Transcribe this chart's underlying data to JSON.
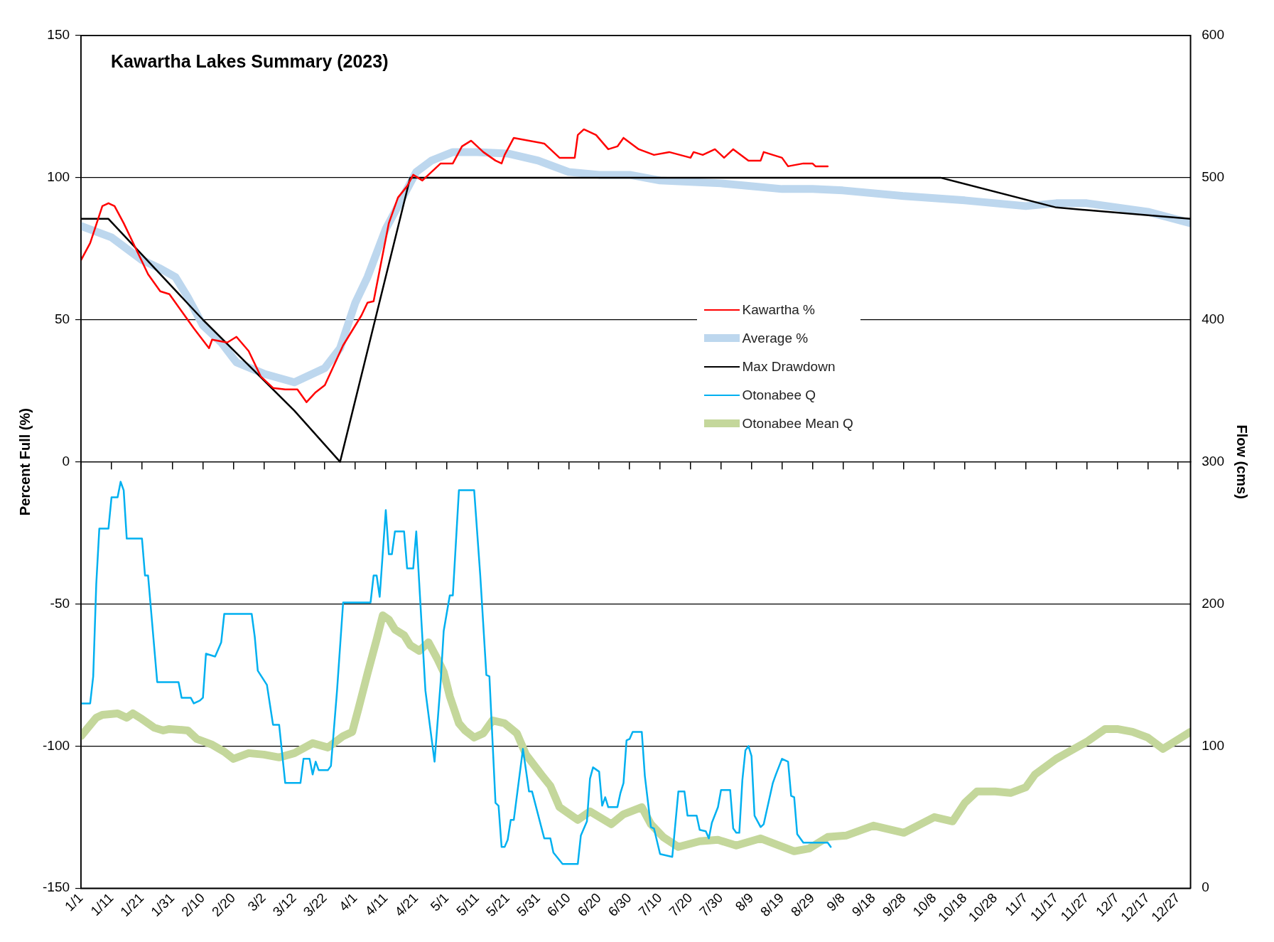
{
  "chart_data": {
    "type": "line",
    "title": "Kawartha Lakes Summary (2023)",
    "ylabel": "Percent Full (%)",
    "y2label": "Flow (cms)",
    "xlim": [
      "--01-01",
      "--12-31"
    ],
    "xticks": [
      {
        "value": "--01-01",
        "label": "1/1"
      },
      {
        "value": "--01-11",
        "label": "1/11"
      },
      {
        "value": "--01-21",
        "label": "1/21"
      },
      {
        "value": "--01-31",
        "label": "1/31"
      },
      {
        "value": "--02-10",
        "label": "2/10"
      },
      {
        "value": "--02-20",
        "label": "2/20"
      },
      {
        "value": "--03-02",
        "label": "3/2"
      },
      {
        "value": "--03-12",
        "label": "3/12"
      },
      {
        "value": "--03-22",
        "label": "3/22"
      },
      {
        "value": "--04-01",
        "label": "4/1"
      },
      {
        "value": "--04-11",
        "label": "4/11"
      },
      {
        "value": "--04-21",
        "label": "4/21"
      },
      {
        "value": "--05-01",
        "label": "5/1"
      },
      {
        "value": "--05-11",
        "label": "5/11"
      },
      {
        "value": "--05-21",
        "label": "5/21"
      },
      {
        "value": "--05-31",
        "label": "5/31"
      },
      {
        "value": "--06-10",
        "label": "6/10"
      },
      {
        "value": "--06-20",
        "label": "6/20"
      },
      {
        "value": "--06-30",
        "label": "6/30"
      },
      {
        "value": "--07-10",
        "label": "7/10"
      },
      {
        "value": "--07-20",
        "label": "7/20"
      },
      {
        "value": "--07-30",
        "label": "7/30"
      },
      {
        "value": "--08-09",
        "label": "8/9"
      },
      {
        "value": "--08-19",
        "label": "8/19"
      },
      {
        "value": "--08-29",
        "label": "8/29"
      },
      {
        "value": "--09-08",
        "label": "9/8"
      },
      {
        "value": "--09-18",
        "label": "9/18"
      },
      {
        "value": "--09-28",
        "label": "9/28"
      },
      {
        "value": "--10-08",
        "label": "10/8"
      },
      {
        "value": "--10-18",
        "label": "10/18"
      },
      {
        "value": "--10-28",
        "label": "10/28"
      },
      {
        "value": "--11-07",
        "label": "11/7"
      },
      {
        "value": "--11-17",
        "label": "11/17"
      },
      {
        "value": "--11-27",
        "label": "11/27"
      },
      {
        "value": "--12-07",
        "label": "12/7"
      },
      {
        "value": "--12-17",
        "label": "12/17"
      },
      {
        "value": "--12-27",
        "label": "12/27"
      }
    ],
    "ylim": [
      -150,
      150
    ],
    "yticks": [
      -150,
      -100,
      -50,
      0,
      50,
      100,
      150
    ],
    "y2lim": [
      0,
      600
    ],
    "y2ticks": [
      0,
      100,
      200,
      300,
      400,
      500,
      600
    ],
    "grid": "y",
    "legend": "center",
    "series": [
      {
        "name": "Kawartha %",
        "color": "#ff0000",
        "x": [
          "--01-01",
          "--01-04",
          "--01-08",
          "--01-10",
          "--01-12",
          "--01-15",
          "--01-19",
          "--01-23",
          "--01-27",
          "--01-30",
          "--02-03",
          "--02-07",
          "--02-12",
          "--02-13",
          "--02-18",
          "--02-21",
          "--02-25",
          "--03-01",
          "--03-05",
          "--03-09",
          "--03-13",
          "--03-16",
          "--03-19",
          "--03-22",
          "--03-25",
          "--03-28",
          "--04-01",
          "--04-03",
          "--04-05",
          "--04-07",
          "--04-09",
          "--04-12",
          "--04-15",
          "--04-18",
          "--04-20",
          "--04-23",
          "--04-25",
          "--04-29",
          "--05-03",
          "--05-06",
          "--05-09",
          "--05-13",
          "--05-17",
          "--05-19",
          "--05-20",
          "--05-23",
          "--06-02",
          "--06-07",
          "--06-12",
          "--06-13",
          "--06-15",
          "--06-19",
          "--06-23",
          "--06-26",
          "--06-28",
          "--07-03",
          "--07-08",
          "--07-13",
          "--07-20",
          "--07-21",
          "--07-24",
          "--07-28",
          "--07-31",
          "--08-03",
          "--08-08",
          "--08-12",
          "--08-13",
          "--08-19",
          "--08-21",
          "--08-26",
          "--08-29",
          "--08-30",
          "--09-03"
        ],
        "values": [
          71,
          77,
          90,
          91,
          90,
          84,
          75,
          66,
          60,
          59,
          53,
          47,
          40,
          43,
          42,
          44,
          39,
          30,
          26,
          25.5,
          25.5,
          21,
          24.5,
          27,
          34,
          41,
          48,
          51.5,
          56,
          56.5,
          67.5,
          84,
          93,
          97,
          101,
          99,
          101,
          105,
          105,
          111,
          113,
          109,
          106,
          105,
          108,
          114,
          112,
          107,
          107,
          115,
          117,
          115,
          110,
          111,
          114,
          110,
          108,
          109,
          107,
          109,
          108,
          110,
          107,
          110,
          106,
          106,
          109,
          107,
          104,
          105,
          105,
          104,
          104
        ]
      },
      {
        "name": "Average %",
        "color": "#bdd7ee",
        "x": [
          "--01-01",
          "--01-11",
          "--01-21",
          "--01-27",
          "--02-01",
          "--02-05",
          "--02-10",
          "--02-16",
          "--02-21",
          "--03-02",
          "--03-12",
          "--03-22",
          "--03-27",
          "--04-01",
          "--04-05",
          "--04-11",
          "--04-16",
          "--04-21",
          "--04-26",
          "--05-03",
          "--05-11",
          "--05-21",
          "--05-31",
          "--06-10",
          "--06-20",
          "--06-30",
          "--07-10",
          "--07-30",
          "--08-19",
          "--08-29",
          "--09-08",
          "--09-28",
          "--10-18",
          "--11-07",
          "--11-17",
          "--11-27",
          "--12-07",
          "--12-17",
          "--12-31"
        ],
        "values": [
          83,
          79,
          71,
          68,
          65,
          58,
          48,
          42,
          35,
          31,
          28,
          33,
          40,
          56,
          65,
          82,
          92,
          102,
          106,
          109,
          109,
          108.5,
          106,
          102,
          101,
          101,
          99,
          98,
          96,
          96,
          95.5,
          93.5,
          92,
          90,
          91,
          91,
          89.5,
          88,
          84
        ]
      },
      {
        "name": "Max Drawdown",
        "color": "#000000",
        "x": [
          "--01-01",
          "--01-10",
          "--02-10",
          "--03-12",
          "--03-27",
          "--03-30",
          "--04-19",
          "--10-10",
          "--11-17",
          "--12-31"
        ],
        "values": [
          85.5,
          85.5,
          50,
          18,
          0,
          13,
          100,
          100,
          89.5,
          85.5
        ]
      },
      {
        "name": "Otonabee Q",
        "color": "#00b0f0",
        "axis": "y2",
        "x": [
          "--01-01",
          "--01-04",
          "--01-05",
          "--01-06",
          "--01-07",
          "--01-10",
          "--01-11",
          "--01-13",
          "--01-14",
          "--01-15",
          "--01-16",
          "--01-21",
          "--01-22",
          "--01-23",
          "--01-26",
          "--02-02",
          "--02-03",
          "--02-06",
          "--02-07",
          "--02-09",
          "--02-10",
          "--02-11",
          "--02-14",
          "--02-16",
          "--02-17",
          "--02-26",
          "--02-27",
          "--02-28",
          "--03-03",
          "--03-05",
          "--03-07",
          "--03-09",
          "--03-14",
          "--03-15",
          "--03-17",
          "--03-18",
          "--03-19",
          "--03-20",
          "--03-23",
          "--03-24",
          "--03-26",
          "--03-28",
          "--04-06",
          "--04-07",
          "--04-08",
          "--04-09",
          "--04-11",
          "--04-12",
          "--04-13",
          "--04-14",
          "--04-17",
          "--04-18",
          "--04-20",
          "--04-21",
          "--04-24",
          "--04-27",
          "--04-29",
          "--04-30",
          "--05-02",
          "--05-03",
          "--05-05",
          "--05-10",
          "--05-12",
          "--05-14",
          "--05-15",
          "--05-17",
          "--05-18",
          "--05-19",
          "--05-20",
          "--05-21",
          "--05-22",
          "--05-23",
          "--05-26",
          "--05-28",
          "--05-29",
          "--06-02",
          "--06-04",
          "--06-05",
          "--06-08",
          "--06-13",
          "--06-14",
          "--06-16",
          "--06-17",
          "--06-18",
          "--06-20",
          "--06-21",
          "--06-22",
          "--06-23",
          "--06-26",
          "--06-27",
          "--06-28",
          "--06-29",
          "--06-30",
          "--07-01",
          "--07-04",
          "--07-05",
          "--07-07",
          "--07-08",
          "--07-10",
          "--07-14",
          "--07-16",
          "--07-18",
          "--07-19",
          "--07-22",
          "--07-23",
          "--07-25",
          "--07-26",
          "--07-27",
          "--07-29",
          "--07-30",
          "--08-02",
          "--08-03",
          "--08-04",
          "--08-05",
          "--08-06",
          "--08-07",
          "--08-08",
          "--08-09",
          "--08-10",
          "--08-12",
          "--08-13",
          "--08-16",
          "--08-17",
          "--08-19",
          "--08-21",
          "--08-22",
          "--08-23",
          "--08-24",
          "--08-26",
          "--09-03",
          "--09-04"
        ],
        "values": [
          130,
          130,
          149,
          214,
          253,
          253,
          275,
          275,
          286,
          280,
          246,
          246,
          220,
          220,
          145,
          145,
          134,
          134,
          130,
          132,
          134,
          165,
          163,
          173,
          193,
          193,
          177,
          153,
          143,
          115,
          115,
          74,
          74,
          91,
          91,
          80,
          89,
          83,
          83,
          86,
          139,
          201,
          201,
          220,
          220,
          205,
          266,
          235,
          235,
          251,
          251,
          225,
          225,
          251,
          139,
          89,
          145,
          181,
          206,
          206,
          280,
          280,
          220,
          150,
          149,
          60,
          58,
          29,
          29,
          34,
          48,
          48,
          98,
          68,
          68,
          35,
          35,
          25,
          17,
          17,
          37,
          47,
          77,
          85,
          82,
          58,
          64,
          57,
          57,
          67,
          74,
          104,
          105,
          110,
          110,
          79,
          43,
          42,
          24,
          22,
          68,
          68,
          51,
          51,
          41,
          40,
          35,
          46,
          57,
          69,
          69,
          42,
          39,
          39,
          76,
          97,
          100,
          93,
          51,
          43,
          45,
          74,
          80,
          91,
          89,
          65,
          64,
          38,
          32,
          32,
          29
        ]
      },
      {
        "name": "Otonabee Mean Q",
        "color": "#c4d79b",
        "axis": "y2",
        "x": [
          "--01-01",
          "--01-06",
          "--01-08",
          "--01-13",
          "--01-16",
          "--01-18",
          "--01-21",
          "--01-25",
          "--01-28",
          "--01-30",
          "--02-05",
          "--02-08",
          "--02-13",
          "--02-17",
          "--02-20",
          "--02-25",
          "--03-02",
          "--03-07",
          "--03-12",
          "--03-18",
          "--03-23",
          "--03-28",
          "--03-31",
          "--04-02",
          "--04-05",
          "--04-08",
          "--04-10",
          "--04-12",
          "--04-14",
          "--04-17",
          "--04-19",
          "--04-22",
          "--04-25",
          "--04-28",
          "--04-30",
          "--05-02",
          "--05-05",
          "--05-07",
          "--05-10",
          "--05-13",
          "--05-16",
          "--05-20",
          "--05-24",
          "--05-27",
          "--06-01",
          "--06-04",
          "--06-07",
          "--06-13",
          "--06-17",
          "--06-24",
          "--06-28",
          "--07-04",
          "--07-07",
          "--07-11",
          "--07-16",
          "--07-23",
          "--07-29",
          "--08-04",
          "--08-12",
          "--08-23",
          "--08-28",
          "--09-03",
          "--09-09",
          "--09-18",
          "--09-28",
          "--10-08",
          "--10-14",
          "--10-18",
          "--10-22",
          "--10-28",
          "--11-02",
          "--11-07",
          "--11-10",
          "--11-17",
          "--11-27",
          "--12-03",
          "--12-07",
          "--12-12",
          "--12-17",
          "--12-22",
          "--12-31"
        ],
        "values": [
          107,
          120,
          122,
          123,
          120,
          123,
          119,
          113,
          111,
          112,
          111,
          105,
          101,
          96,
          91,
          95,
          94,
          92,
          95,
          102,
          99,
          107,
          110,
          126,
          151,
          175,
          192,
          189,
          182,
          178,
          171,
          167,
          173,
          161,
          152,
          135,
          116,
          111,
          106,
          109,
          118,
          116,
          109,
          94,
          80,
          72,
          57,
          48,
          54,
          45,
          52,
          57,
          45,
          36,
          29,
          33,
          34,
          30,
          35,
          26,
          28,
          36,
          37,
          44,
          39,
          50,
          47,
          60,
          68,
          68,
          67,
          71,
          80,
          91,
          103,
          112,
          112,
          110,
          106,
          98,
          110
        ]
      }
    ]
  }
}
